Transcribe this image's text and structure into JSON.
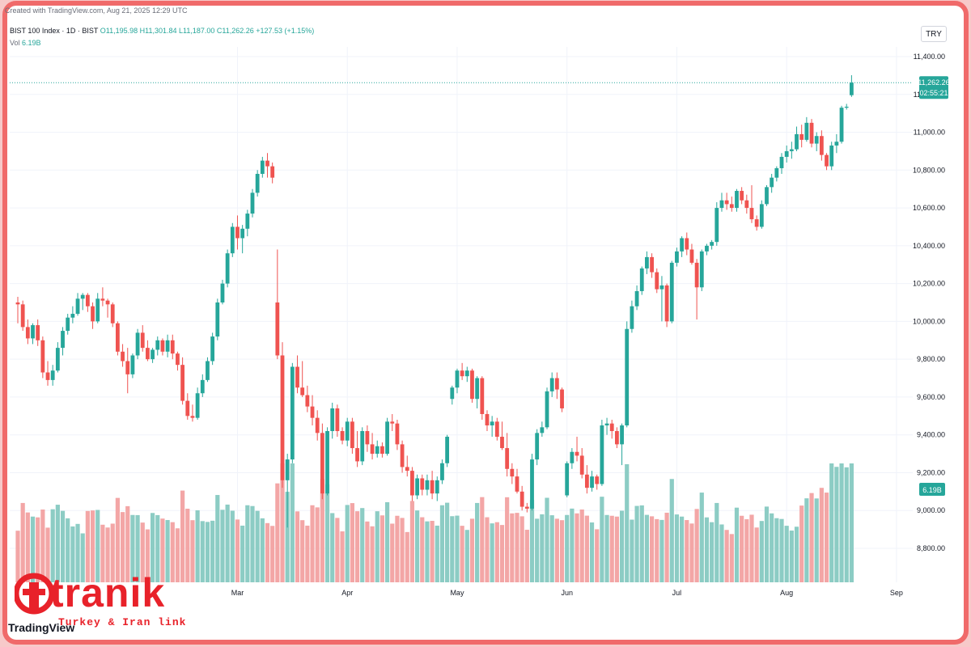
{
  "header": {
    "credit": "Created with TradingView.com, Aug 21, 2025 12:29 UTC",
    "symbol": "BIST 100 Index · 1D · BIST",
    "ohlc": "O11,195.98 H11,301.84 L11,187.00 C11,262.26 +127.53 (+1.15%)",
    "vol_label": "Vol",
    "vol_value": "6.19B",
    "currency": "TRY"
  },
  "price_tag": {
    "value": "11,262.26",
    "countdown": "02:55:21"
  },
  "volume_tag": "6.19B",
  "watermark": {
    "logo_text": "tranik",
    "tagline": "Turkey & Iran link",
    "platform": "TradingView"
  },
  "colors": {
    "up": "#26a69a",
    "down": "#ef5350",
    "up_vol": "#8cccc4",
    "down_vol": "#f3a6a6",
    "frame": "#f06a6a"
  },
  "chart_data": {
    "type": "candlestick",
    "title": "BIST 100 Index · 1D · BIST",
    "ylim": [
      8700,
      11450
    ],
    "y_ticks": [
      8800,
      9000,
      9200,
      9400,
      9600,
      9800,
      10000,
      10200,
      10400,
      10600,
      10800,
      11000,
      11200,
      11400
    ],
    "y_tick_labels": [
      "8,800.00",
      "9,000.00",
      "9,200.00",
      "9,400.00",
      "9,600.00",
      "9,800.00",
      "10,000.00",
      "10,200.00",
      "10,400.00",
      "10,600.00",
      "10,800.00",
      "11,000.00",
      "11,200.00",
      "11,400.00"
    ],
    "x_labels": [
      "Mar",
      "Apr",
      "May",
      "Jun",
      "Jul",
      "Aug",
      "Sep"
    ],
    "x_label_index": [
      44,
      66,
      88,
      110,
      132,
      154,
      176
    ],
    "last_price": 11262.26,
    "grid": true,
    "candles": [
      {
        "o": 10100,
        "h": 10130,
        "l": 9990,
        "c": 10090
      },
      {
        "o": 10090,
        "h": 10110,
        "l": 9950,
        "c": 9970
      },
      {
        "o": 9970,
        "h": 10010,
        "l": 9880,
        "c": 9910
      },
      {
        "o": 9910,
        "h": 9990,
        "l": 9880,
        "c": 9980
      },
      {
        "o": 9980,
        "h": 10010,
        "l": 9870,
        "c": 9900
      },
      {
        "o": 9900,
        "h": 9920,
        "l": 9700,
        "c": 9730
      },
      {
        "o": 9730,
        "h": 9790,
        "l": 9660,
        "c": 9690
      },
      {
        "o": 9690,
        "h": 9770,
        "l": 9660,
        "c": 9740
      },
      {
        "o": 9740,
        "h": 9890,
        "l": 9730,
        "c": 9860
      },
      {
        "o": 9860,
        "h": 9970,
        "l": 9820,
        "c": 9950
      },
      {
        "o": 9950,
        "h": 10040,
        "l": 9930,
        "c": 10020
      },
      {
        "o": 10020,
        "h": 10080,
        "l": 9990,
        "c": 10040
      },
      {
        "o": 10040,
        "h": 10150,
        "l": 10030,
        "c": 10120
      },
      {
        "o": 10120,
        "h": 10150,
        "l": 10060,
        "c": 10140
      },
      {
        "o": 10140,
        "h": 10150,
        "l": 10050,
        "c": 10080
      },
      {
        "o": 10080,
        "h": 10100,
        "l": 9960,
        "c": 10000
      },
      {
        "o": 10000,
        "h": 10150,
        "l": 9990,
        "c": 10120
      },
      {
        "o": 10120,
        "h": 10180,
        "l": 10080,
        "c": 10110
      },
      {
        "o": 10110,
        "h": 10120,
        "l": 10020,
        "c": 10090
      },
      {
        "o": 10090,
        "h": 10100,
        "l": 9970,
        "c": 9990
      },
      {
        "o": 9990,
        "h": 10000,
        "l": 9820,
        "c": 9840
      },
      {
        "o": 9840,
        "h": 9880,
        "l": 9760,
        "c": 9790
      },
      {
        "o": 9790,
        "h": 9860,
        "l": 9620,
        "c": 9720
      },
      {
        "o": 9720,
        "h": 9830,
        "l": 9700,
        "c": 9820
      },
      {
        "o": 9820,
        "h": 9960,
        "l": 9800,
        "c": 9940
      },
      {
        "o": 9940,
        "h": 9980,
        "l": 9840,
        "c": 9860
      },
      {
        "o": 9860,
        "h": 9900,
        "l": 9790,
        "c": 9800
      },
      {
        "o": 9800,
        "h": 9860,
        "l": 9780,
        "c": 9850
      },
      {
        "o": 9850,
        "h": 9920,
        "l": 9820,
        "c": 9900
      },
      {
        "o": 9900,
        "h": 9910,
        "l": 9820,
        "c": 9840
      },
      {
        "o": 9840,
        "h": 9930,
        "l": 9810,
        "c": 9900
      },
      {
        "o": 9900,
        "h": 9930,
        "l": 9800,
        "c": 9830
      },
      {
        "o": 9830,
        "h": 9840,
        "l": 9740,
        "c": 9770
      },
      {
        "o": 9770,
        "h": 9810,
        "l": 9560,
        "c": 9580
      },
      {
        "o": 9580,
        "h": 9620,
        "l": 9480,
        "c": 9500
      },
      {
        "o": 9500,
        "h": 9560,
        "l": 9470,
        "c": 9490
      },
      {
        "o": 9490,
        "h": 9650,
        "l": 9480,
        "c": 9620
      },
      {
        "o": 9620,
        "h": 9720,
        "l": 9600,
        "c": 9690
      },
      {
        "o": 9690,
        "h": 9810,
        "l": 9680,
        "c": 9790
      },
      {
        "o": 9790,
        "h": 9940,
        "l": 9770,
        "c": 9920
      },
      {
        "o": 9920,
        "h": 10120,
        "l": 9900,
        "c": 10100
      },
      {
        "o": 10100,
        "h": 10220,
        "l": 10090,
        "c": 10200
      },
      {
        "o": 10200,
        "h": 10380,
        "l": 10180,
        "c": 10360
      },
      {
        "o": 10360,
        "h": 10520,
        "l": 10340,
        "c": 10500
      },
      {
        "o": 10500,
        "h": 10560,
        "l": 10380,
        "c": 10440
      },
      {
        "o": 10440,
        "h": 10510,
        "l": 10360,
        "c": 10490
      },
      {
        "o": 10490,
        "h": 10590,
        "l": 10450,
        "c": 10570
      },
      {
        "o": 10570,
        "h": 10700,
        "l": 10550,
        "c": 10680
      },
      {
        "o": 10680,
        "h": 10800,
        "l": 10660,
        "c": 10780
      },
      {
        "o": 10780,
        "h": 10870,
        "l": 10760,
        "c": 10850
      },
      {
        "o": 10850,
        "h": 10890,
        "l": 10760,
        "c": 10820
      },
      {
        "o": 10820,
        "h": 10840,
        "l": 10730,
        "c": 10760
      },
      {
        "o": 10100,
        "h": 10380,
        "l": 9800,
        "c": 9820
      },
      {
        "o": 9820,
        "h": 9890,
        "l": 9120,
        "c": 9160
      },
      {
        "o": 9160,
        "h": 9300,
        "l": 8910,
        "c": 9270
      },
      {
        "o": 9270,
        "h": 9780,
        "l": 9250,
        "c": 9760
      },
      {
        "o": 9760,
        "h": 9820,
        "l": 9620,
        "c": 9650
      },
      {
        "o": 9650,
        "h": 9790,
        "l": 9600,
        "c": 9610
      },
      {
        "o": 9610,
        "h": 9660,
        "l": 9520,
        "c": 9550
      },
      {
        "o": 9550,
        "h": 9610,
        "l": 9450,
        "c": 9490
      },
      {
        "o": 9490,
        "h": 9530,
        "l": 9370,
        "c": 9410
      },
      {
        "o": 9410,
        "h": 9460,
        "l": 9060,
        "c": 9090
      },
      {
        "o": 9090,
        "h": 9440,
        "l": 9080,
        "c": 9420
      },
      {
        "o": 9420,
        "h": 9570,
        "l": 9380,
        "c": 9540
      },
      {
        "o": 9540,
        "h": 9560,
        "l": 9390,
        "c": 9420
      },
      {
        "o": 9420,
        "h": 9440,
        "l": 9350,
        "c": 9370
      },
      {
        "o": 9370,
        "h": 9490,
        "l": 9340,
        "c": 9470
      },
      {
        "o": 9470,
        "h": 9490,
        "l": 9300,
        "c": 9330
      },
      {
        "o": 9330,
        "h": 9420,
        "l": 9230,
        "c": 9260
      },
      {
        "o": 9260,
        "h": 9440,
        "l": 9240,
        "c": 9420
      },
      {
        "o": 9420,
        "h": 9450,
        "l": 9310,
        "c": 9350
      },
      {
        "o": 9350,
        "h": 9410,
        "l": 9270,
        "c": 9300
      },
      {
        "o": 9300,
        "h": 9370,
        "l": 9280,
        "c": 9340
      },
      {
        "o": 9340,
        "h": 9360,
        "l": 9280,
        "c": 9300
      },
      {
        "o": 9300,
        "h": 9490,
        "l": 9290,
        "c": 9470
      },
      {
        "o": 9470,
        "h": 9510,
        "l": 9420,
        "c": 9460
      },
      {
        "o": 9460,
        "h": 9480,
        "l": 9320,
        "c": 9350
      },
      {
        "o": 9350,
        "h": 9370,
        "l": 9200,
        "c": 9230
      },
      {
        "o": 9230,
        "h": 9290,
        "l": 9180,
        "c": 9210
      },
      {
        "o": 9210,
        "h": 9230,
        "l": 9050,
        "c": 9080
      },
      {
        "o": 9080,
        "h": 9190,
        "l": 9060,
        "c": 9170
      },
      {
        "o": 9170,
        "h": 9190,
        "l": 9080,
        "c": 9110
      },
      {
        "o": 9110,
        "h": 9190,
        "l": 9080,
        "c": 9160
      },
      {
        "o": 9160,
        "h": 9210,
        "l": 9060,
        "c": 9090
      },
      {
        "o": 9090,
        "h": 9180,
        "l": 9050,
        "c": 9160
      },
      {
        "o": 9160,
        "h": 9270,
        "l": 9140,
        "c": 9250
      },
      {
        "o": 9250,
        "h": 9400,
        "l": 9230,
        "c": 9390
      },
      {
        "o": 9590,
        "h": 9660,
        "l": 9560,
        "c": 9650
      },
      {
        "o": 9650,
        "h": 9750,
        "l": 9620,
        "c": 9740
      },
      {
        "o": 9740,
        "h": 9780,
        "l": 9690,
        "c": 9710
      },
      {
        "o": 9710,
        "h": 9760,
        "l": 9680,
        "c": 9740
      },
      {
        "o": 9740,
        "h": 9750,
        "l": 9570,
        "c": 9590
      },
      {
        "o": 9590,
        "h": 9710,
        "l": 9540,
        "c": 9700
      },
      {
        "o": 9700,
        "h": 9710,
        "l": 9480,
        "c": 9510
      },
      {
        "o": 9510,
        "h": 9530,
        "l": 9420,
        "c": 9450
      },
      {
        "o": 9450,
        "h": 9500,
        "l": 9390,
        "c": 9470
      },
      {
        "o": 9470,
        "h": 9490,
        "l": 9370,
        "c": 9390
      },
      {
        "o": 9390,
        "h": 9470,
        "l": 9320,
        "c": 9330
      },
      {
        "o": 9330,
        "h": 9410,
        "l": 9180,
        "c": 9220
      },
      {
        "o": 9220,
        "h": 9250,
        "l": 9140,
        "c": 9180
      },
      {
        "o": 9180,
        "h": 9220,
        "l": 9090,
        "c": 9100
      },
      {
        "o": 9100,
        "h": 9130,
        "l": 9000,
        "c": 9020
      },
      {
        "o": 9020,
        "h": 9040,
        "l": 8990,
        "c": 9010
      },
      {
        "o": 9010,
        "h": 9300,
        "l": 9000,
        "c": 9270
      },
      {
        "o": 9270,
        "h": 9430,
        "l": 9240,
        "c": 9410
      },
      {
        "o": 9410,
        "h": 9470,
        "l": 9390,
        "c": 9440
      },
      {
        "o": 9440,
        "h": 9650,
        "l": 9430,
        "c": 9630
      },
      {
        "o": 9630,
        "h": 9730,
        "l": 9600,
        "c": 9700
      },
      {
        "o": 9700,
        "h": 9730,
        "l": 9590,
        "c": 9640
      },
      {
        "o": 9640,
        "h": 9650,
        "l": 9520,
        "c": 9540
      },
      {
        "o": 9080,
        "h": 9260,
        "l": 9070,
        "c": 9250
      },
      {
        "o": 9250,
        "h": 9330,
        "l": 9220,
        "c": 9310
      },
      {
        "o": 9310,
        "h": 9390,
        "l": 9260,
        "c": 9290
      },
      {
        "o": 9290,
        "h": 9330,
        "l": 9170,
        "c": 9190
      },
      {
        "o": 9190,
        "h": 9240,
        "l": 9090,
        "c": 9120
      },
      {
        "o": 9120,
        "h": 9210,
        "l": 9100,
        "c": 9180
      },
      {
        "o": 9180,
        "h": 9190,
        "l": 9110,
        "c": 9140
      },
      {
        "o": 9140,
        "h": 9480,
        "l": 9130,
        "c": 9450
      },
      {
        "o": 9450,
        "h": 9490,
        "l": 9400,
        "c": 9460
      },
      {
        "o": 9460,
        "h": 9480,
        "l": 9380,
        "c": 9420
      },
      {
        "o": 9420,
        "h": 9440,
        "l": 9330,
        "c": 9350
      },
      {
        "o": 9350,
        "h": 9460,
        "l": 9240,
        "c": 9450
      },
      {
        "o": 9450,
        "h": 10000,
        "l": 9440,
        "c": 9960
      },
      {
        "o": 9960,
        "h": 10110,
        "l": 9940,
        "c": 10080
      },
      {
        "o": 10080,
        "h": 10190,
        "l": 10060,
        "c": 10160
      },
      {
        "o": 10160,
        "h": 10290,
        "l": 10140,
        "c": 10280
      },
      {
        "o": 10280,
        "h": 10370,
        "l": 10250,
        "c": 10340
      },
      {
        "o": 10340,
        "h": 10360,
        "l": 10230,
        "c": 10260
      },
      {
        "o": 10260,
        "h": 10280,
        "l": 10150,
        "c": 10170
      },
      {
        "o": 10170,
        "h": 10240,
        "l": 10000,
        "c": 10190
      },
      {
        "o": 10190,
        "h": 10200,
        "l": 9970,
        "c": 10000
      },
      {
        "o": 10000,
        "h": 10320,
        "l": 9990,
        "c": 10310
      },
      {
        "o": 10310,
        "h": 10390,
        "l": 10290,
        "c": 10370
      },
      {
        "o": 10370,
        "h": 10450,
        "l": 10340,
        "c": 10440
      },
      {
        "o": 10440,
        "h": 10470,
        "l": 10350,
        "c": 10380
      },
      {
        "o": 10380,
        "h": 10410,
        "l": 10300,
        "c": 10310
      },
      {
        "o": 10310,
        "h": 10330,
        "l": 10010,
        "c": 10180
      },
      {
        "o": 10180,
        "h": 10380,
        "l": 10160,
        "c": 10370
      },
      {
        "o": 10370,
        "h": 10410,
        "l": 10350,
        "c": 10400
      },
      {
        "o": 10400,
        "h": 10430,
        "l": 10380,
        "c": 10420
      },
      {
        "o": 10420,
        "h": 10630,
        "l": 10400,
        "c": 10600
      },
      {
        "o": 10600,
        "h": 10680,
        "l": 10580,
        "c": 10640
      },
      {
        "o": 10640,
        "h": 10680,
        "l": 10590,
        "c": 10620
      },
      {
        "o": 10620,
        "h": 10660,
        "l": 10580,
        "c": 10600
      },
      {
        "o": 10600,
        "h": 10700,
        "l": 10580,
        "c": 10690
      },
      {
        "o": 10690,
        "h": 10710,
        "l": 10620,
        "c": 10640
      },
      {
        "o": 10640,
        "h": 10670,
        "l": 10570,
        "c": 10600
      },
      {
        "o": 10600,
        "h": 10720,
        "l": 10520,
        "c": 10540
      },
      {
        "o": 10540,
        "h": 10560,
        "l": 10480,
        "c": 10500
      },
      {
        "o": 10500,
        "h": 10640,
        "l": 10490,
        "c": 10620
      },
      {
        "o": 10620,
        "h": 10720,
        "l": 10610,
        "c": 10710
      },
      {
        "o": 10710,
        "h": 10780,
        "l": 10680,
        "c": 10760
      },
      {
        "o": 10760,
        "h": 10820,
        "l": 10740,
        "c": 10810
      },
      {
        "o": 10810,
        "h": 10890,
        "l": 10780,
        "c": 10870
      },
      {
        "o": 10870,
        "h": 10930,
        "l": 10840,
        "c": 10900
      },
      {
        "o": 10900,
        "h": 10950,
        "l": 10860,
        "c": 10910
      },
      {
        "o": 10910,
        "h": 11030,
        "l": 10900,
        "c": 10990
      },
      {
        "o": 10990,
        "h": 11040,
        "l": 10920,
        "c": 10960
      },
      {
        "o": 10960,
        "h": 11080,
        "l": 10950,
        "c": 11050
      },
      {
        "o": 11050,
        "h": 11070,
        "l": 10920,
        "c": 10940
      },
      {
        "o": 10940,
        "h": 11000,
        "l": 10900,
        "c": 10980
      },
      {
        "o": 10980,
        "h": 11010,
        "l": 10850,
        "c": 10880
      },
      {
        "o": 10880,
        "h": 10890,
        "l": 10800,
        "c": 10820
      },
      {
        "o": 10820,
        "h": 10950,
        "l": 10800,
        "c": 10930
      },
      {
        "o": 10930,
        "h": 10990,
        "l": 10890,
        "c": 10950
      },
      {
        "o": 10950,
        "h": 11140,
        "l": 10940,
        "c": 11130
      },
      {
        "o": 11130,
        "h": 11150,
        "l": 11120,
        "c": 11135
      },
      {
        "o": 11195.98,
        "h": 11301.84,
        "l": 11187,
        "c": 11262.26
      }
    ],
    "volume_max": 7.0,
    "volume_unit": "B"
  }
}
